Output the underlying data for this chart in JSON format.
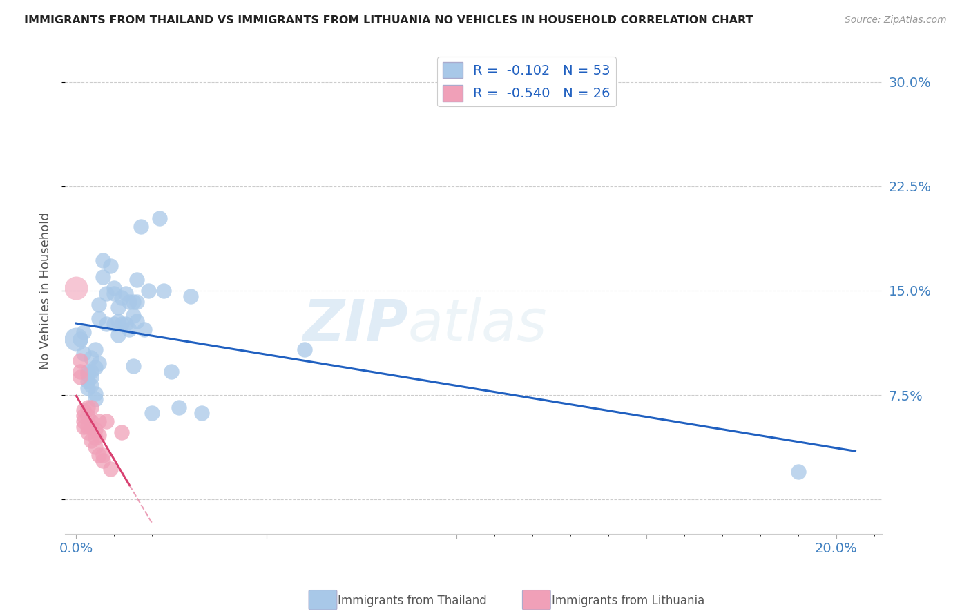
{
  "title": "IMMIGRANTS FROM THAILAND VS IMMIGRANTS FROM LITHUANIA NO VEHICLES IN HOUSEHOLD CORRELATION CHART",
  "source": "Source: ZipAtlas.com",
  "ylabel": "No Vehicles in Household",
  "x_ticks": [
    0.0,
    0.05,
    0.1,
    0.15,
    0.2
  ],
  "x_tick_labels": [
    "0.0%",
    "",
    "",
    "",
    "20.0%"
  ],
  "y_ticks": [
    0.0,
    0.075,
    0.15,
    0.225,
    0.3
  ],
  "y_tick_labels": [
    "",
    "7.5%",
    "15.0%",
    "22.5%",
    "30.0%"
  ],
  "xlim": [
    -0.003,
    0.212
  ],
  "ylim": [
    -0.025,
    0.325
  ],
  "legend_R_thailand": "-0.102",
  "legend_N_thailand": "53",
  "legend_R_lithuania": "-0.540",
  "legend_N_lithuania": "26",
  "thailand_color": "#a8c8e8",
  "lithuania_color": "#f0a0b8",
  "thailand_line_color": "#2060c0",
  "lithuania_line_color": "#d84070",
  "watermark_zip": "ZIP",
  "watermark_atlas": "atlas",
  "thailand_x": [
    0.001,
    0.002,
    0.002,
    0.003,
    0.003,
    0.003,
    0.003,
    0.004,
    0.004,
    0.004,
    0.004,
    0.005,
    0.005,
    0.005,
    0.005,
    0.006,
    0.006,
    0.006,
    0.007,
    0.007,
    0.008,
    0.008,
    0.009,
    0.01,
    0.01,
    0.01,
    0.011,
    0.011,
    0.011,
    0.012,
    0.012,
    0.013,
    0.013,
    0.014,
    0.014,
    0.015,
    0.015,
    0.015,
    0.016,
    0.016,
    0.016,
    0.017,
    0.018,
    0.019,
    0.02,
    0.022,
    0.023,
    0.025,
    0.027,
    0.03,
    0.033,
    0.06,
    0.19
  ],
  "thailand_y": [
    0.115,
    0.105,
    0.12,
    0.09,
    0.092,
    0.085,
    0.08,
    0.102,
    0.088,
    0.092,
    0.082,
    0.095,
    0.076,
    0.072,
    0.108,
    0.14,
    0.13,
    0.098,
    0.172,
    0.16,
    0.148,
    0.126,
    0.168,
    0.152,
    0.148,
    0.126,
    0.138,
    0.128,
    0.118,
    0.145,
    0.126,
    0.148,
    0.126,
    0.142,
    0.122,
    0.142,
    0.132,
    0.096,
    0.158,
    0.142,
    0.128,
    0.196,
    0.122,
    0.15,
    0.062,
    0.202,
    0.15,
    0.092,
    0.066,
    0.146,
    0.062,
    0.108,
    0.02
  ],
  "lithuania_x": [
    0.001,
    0.001,
    0.001,
    0.002,
    0.002,
    0.002,
    0.002,
    0.003,
    0.003,
    0.003,
    0.003,
    0.004,
    0.004,
    0.004,
    0.004,
    0.005,
    0.005,
    0.005,
    0.006,
    0.006,
    0.006,
    0.007,
    0.007,
    0.008,
    0.009,
    0.012
  ],
  "lithuania_y": [
    0.088,
    0.092,
    0.1,
    0.052,
    0.056,
    0.06,
    0.064,
    0.048,
    0.052,
    0.06,
    0.066,
    0.042,
    0.052,
    0.056,
    0.066,
    0.038,
    0.044,
    0.05,
    0.032,
    0.046,
    0.056,
    0.028,
    0.032,
    0.056,
    0.022,
    0.048
  ],
  "background_color": "#ffffff"
}
